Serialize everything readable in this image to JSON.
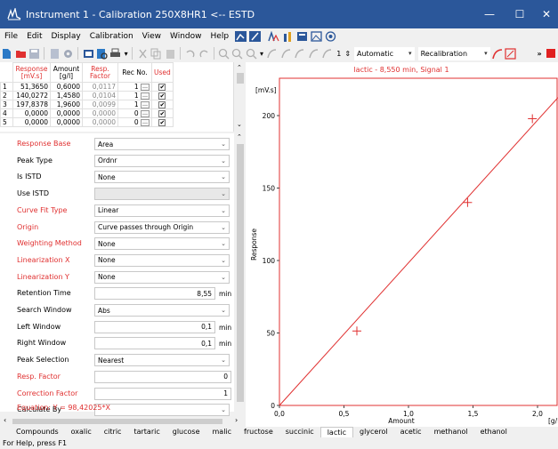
{
  "window": {
    "title": "Instrument 1 - Calibration 250X8HR1 <-- ESTD",
    "minimize": "—",
    "maximize": "☐",
    "close": "✕"
  },
  "menu": [
    {
      "label": "File"
    },
    {
      "label": "Edit"
    },
    {
      "label": "Display"
    },
    {
      "label": "Calibration"
    },
    {
      "label": "View"
    },
    {
      "label": "Window"
    },
    {
      "label": "Help"
    }
  ],
  "toolbar": {
    "spin_value": "1",
    "combo1": "Automatic",
    "combo2": "Recalibration",
    "more": "»"
  },
  "cal_table": {
    "headers": [
      "Response [mV.s]",
      "Amount [g/l]",
      "Resp. Factor",
      "Rec No.",
      "Used"
    ],
    "rows": [
      {
        "n": "1",
        "response": "51,3650",
        "amount": "0,6000",
        "factor": "0,0117",
        "rec": "1"
      },
      {
        "n": "2",
        "response": "140,0272",
        "amount": "1,4580",
        "factor": "0,0104",
        "rec": "1"
      },
      {
        "n": "3",
        "response": "197,8378",
        "amount": "1,9600",
        "factor": "0,0099",
        "rec": "1"
      },
      {
        "n": "4",
        "response": "0,0000",
        "amount": "0,0000",
        "factor": "0,0000",
        "rec": "0"
      },
      {
        "n": "5",
        "response": "0,0000",
        "amount": "0,0000",
        "factor": "0,0000",
        "rec": "0"
      }
    ]
  },
  "props": [
    {
      "label": "Response Base",
      "red": true,
      "value": "Area",
      "kind": "combo"
    },
    {
      "label": "Peak Type",
      "red": false,
      "value": "Ordnr",
      "kind": "combo"
    },
    {
      "label": "Is ISTD",
      "red": false,
      "value": "None",
      "kind": "combo"
    },
    {
      "label": "Use ISTD",
      "red": false,
      "value": "",
      "kind": "combo-disabled"
    },
    {
      "label": "Curve Fit Type",
      "red": true,
      "value": "Linear",
      "kind": "combo"
    },
    {
      "label": "Origin",
      "red": true,
      "value": "Curve passes through Origin",
      "kind": "combo"
    },
    {
      "label": "Weighting Method",
      "red": true,
      "value": "None",
      "kind": "combo"
    },
    {
      "label": "Linearization X",
      "red": true,
      "value": "None",
      "kind": "combo"
    },
    {
      "label": "Linearization Y",
      "red": true,
      "value": "None",
      "kind": "combo"
    },
    {
      "label": "Retention Time",
      "red": false,
      "value": "8,55",
      "kind": "text",
      "unit": "min"
    },
    {
      "label": "Search Window",
      "red": false,
      "value": "Abs",
      "kind": "combo"
    },
    {
      "label": "Left Window",
      "red": false,
      "value": "0,1",
      "kind": "text",
      "unit": "min"
    },
    {
      "label": "Right Window",
      "red": false,
      "value": "0,1",
      "kind": "text",
      "unit": "min"
    },
    {
      "label": "Peak Selection",
      "red": false,
      "value": "Nearest",
      "kind": "combo"
    },
    {
      "label": "Resp. Factor",
      "red": true,
      "value": "0",
      "kind": "text-full"
    },
    {
      "label": "Correction Factor",
      "red": true,
      "value": "1",
      "kind": "text-full"
    },
    {
      "label": "Calculate By",
      "red": false,
      "value": "",
      "kind": "combo"
    }
  ],
  "equation": "Equation:    Y = 98,42025*X",
  "tabs": [
    {
      "label": "Compounds",
      "active": false
    },
    {
      "label": "oxalic",
      "active": false
    },
    {
      "label": "citric",
      "active": false
    },
    {
      "label": "tartaric",
      "active": false
    },
    {
      "label": "glucose",
      "active": false
    },
    {
      "label": "malic",
      "active": false
    },
    {
      "label": "fructose",
      "active": false
    },
    {
      "label": "succinic",
      "active": false
    },
    {
      "label": "lactic",
      "active": true
    },
    {
      "label": "glycerol",
      "active": false
    },
    {
      "label": "acetic",
      "active": false
    },
    {
      "label": "methanol",
      "active": false
    },
    {
      "label": "ethanol",
      "active": false
    }
  ],
  "status": "For Help, press F1",
  "colors": {
    "accent": "#2b579a",
    "red": "#e03030"
  },
  "chart_data": {
    "type": "scatter",
    "title": "lactic - 8,550 min, Signal 1",
    "ylabel": "Response",
    "yunit": "[mV.s]",
    "xlabel": "Amount",
    "xunit": "[g/l]",
    "xlim": [
      0,
      2.0
    ],
    "ylim": [
      0,
      200
    ],
    "xticks": [
      "0,0",
      "0,5",
      "1,0",
      "1,5",
      "2,0"
    ],
    "yticks": [
      "0",
      "50",
      "100",
      "150",
      "200"
    ],
    "points": [
      {
        "x": 0.6,
        "y": 51.365
      },
      {
        "x": 1.458,
        "y": 140.0272
      },
      {
        "x": 1.96,
        "y": 197.8378
      }
    ],
    "fit": {
      "slope": 98.42025,
      "intercept": 0
    },
    "color": "#e03030",
    "grid": false
  }
}
